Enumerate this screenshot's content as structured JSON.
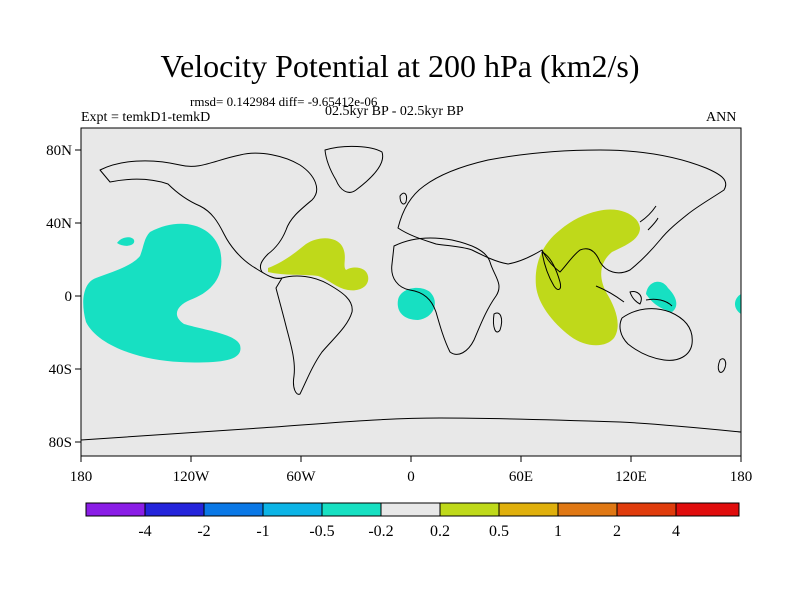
{
  "chart_data": {
    "type": "heatmap",
    "title": "Velocity Potential at 200 hPa (km2/s)",
    "stats_text": "rmsd= 0.142984 diff= -9.65412e-06",
    "subtitle_left": "Expt = temkD1-temkD",
    "subtitle_center": "02.5kyr BP - 02.5kyr BP",
    "subtitle_right": "ANN",
    "x_ticks": [
      "180",
      "120W",
      "60W",
      "0",
      "60E",
      "120E",
      "180"
    ],
    "y_ticks": [
      "80N",
      "40N",
      "0",
      "40S",
      "80S"
    ],
    "xlim": [
      -180,
      180
    ],
    "ylim": [
      -90,
      90
    ],
    "background_band": "-0.2 to 0.2",
    "contour_regions": [
      {
        "name": "Central/eastern tropical Pacific",
        "band": "-0.5 to -0.2",
        "approx_center": [
          -135,
          0
        ]
      },
      {
        "name": "North Pacific small patch",
        "band": "-0.5 to -0.2",
        "approx_center": [
          -163,
          29
        ]
      },
      {
        "name": "Gulf of Guinea",
        "band": "-0.5 to -0.2",
        "approx_center": [
          2,
          -4
        ]
      },
      {
        "name": "Maritime Continent",
        "band": "-0.5 to -0.2",
        "approx_center": [
          135,
          1
        ]
      },
      {
        "name": "Dateline edge",
        "band": "-0.5 to -0.2",
        "approx_center": [
          178,
          -5
        ]
      },
      {
        "name": "Caribbean / tropical Atlantic",
        "band": "0.2 to 0.5",
        "approx_center": [
          -45,
          17
        ]
      },
      {
        "name": "Indian Ocean / South Asia",
        "band": "0.2 to 0.5",
        "approx_center": [
          90,
          12
        ]
      }
    ],
    "colorbar": {
      "labels": [
        "-4",
        "-2",
        "-1",
        "-0.5",
        "-0.2",
        "0.2",
        "0.5",
        "1",
        "2",
        "4"
      ],
      "colors": [
        "#8a1de6",
        "#2424db",
        "#0a78e6",
        "#0cb4e6",
        "#17e0c2",
        "#e8e8e8",
        "#bfd91a",
        "#e0b00c",
        "#e07814",
        "#e03c0c",
        "#e00c0c"
      ]
    },
    "colors": {
      "background": "#e8e8e8",
      "negative_region": "#17e0c2",
      "positive_region": "#bfd91a",
      "coastline": "#000000"
    }
  }
}
